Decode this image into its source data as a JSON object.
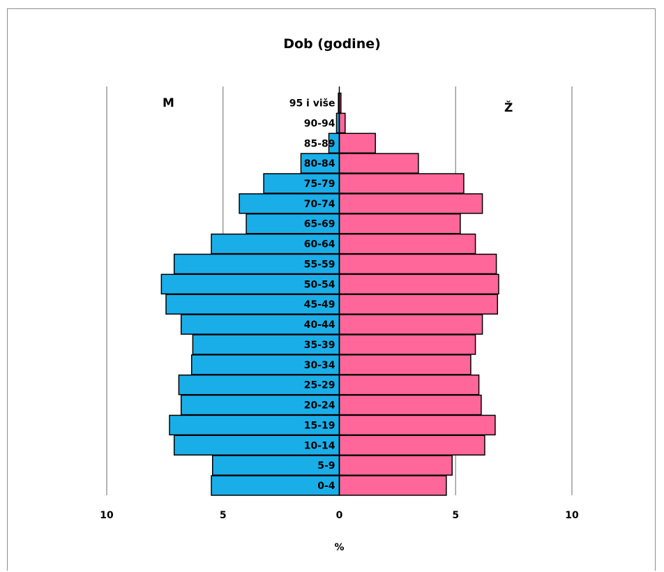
{
  "chart_data": {
    "type": "bar",
    "title": "Dob (godine)",
    "xlabel": "%",
    "left_label": "M",
    "right_label": "Ž",
    "xlim": [
      -10,
      10
    ],
    "xticks": [
      {
        "value": -10,
        "label": "10"
      },
      {
        "value": -5,
        "label": "5"
      },
      {
        "value": 0,
        "label": "0"
      },
      {
        "value": 5,
        "label": "5"
      },
      {
        "value": 10,
        "label": "10"
      }
    ],
    "grid": "vertical",
    "categories": [
      "0-4",
      "5-9",
      "10-14",
      "15-19",
      "20-24",
      "25-29",
      "30-34",
      "35-39",
      "40-44",
      "45-49",
      "50-54",
      "55-59",
      "60-64",
      "65-69",
      "70-74",
      "75-79",
      "80-84",
      "85-89",
      "90-94",
      "95 i više"
    ],
    "series": [
      {
        "name": "M",
        "color": "#1aaee8",
        "values": [
          5.5,
          5.45,
          7.1,
          7.3,
          6.8,
          6.9,
          6.35,
          6.3,
          6.8,
          7.45,
          7.65,
          7.1,
          5.5,
          4.0,
          4.3,
          3.25,
          1.65,
          0.45,
          0.12,
          0.04
        ]
      },
      {
        "name": "Ž",
        "color": "#ff6699",
        "values": [
          4.6,
          4.85,
          6.25,
          6.7,
          6.1,
          6.0,
          5.65,
          5.85,
          6.15,
          6.8,
          6.85,
          6.75,
          5.85,
          5.2,
          6.15,
          5.35,
          3.4,
          1.55,
          0.25,
          0.07
        ]
      }
    ]
  }
}
